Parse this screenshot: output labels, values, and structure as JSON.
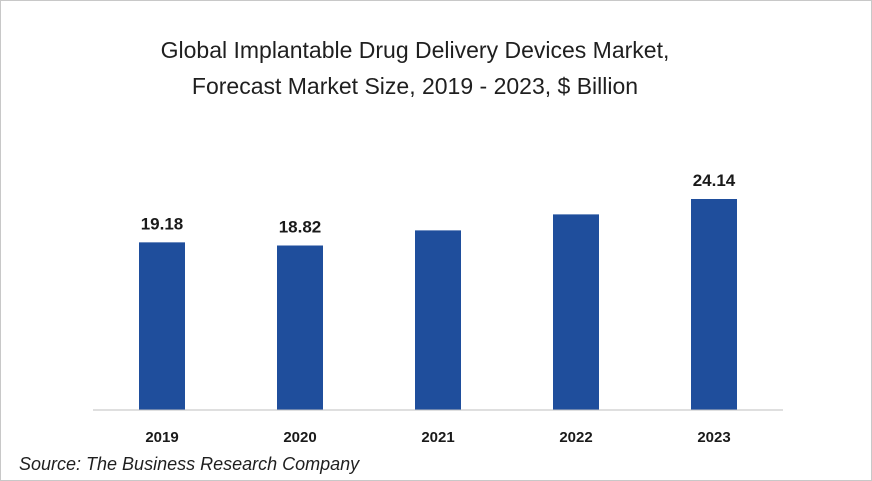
{
  "chart_data": {
    "type": "bar",
    "title_lines": [
      "Global Implantable Drug Delivery Devices Market,",
      "Forecast Market Size, 2019 - 2023, $ Billion"
    ],
    "categories": [
      "2019",
      "2020",
      "2021",
      "2022",
      "2023"
    ],
    "values": [
      19.18,
      18.82,
      20.55,
      22.38,
      24.14
    ],
    "data_labels": [
      "19.18",
      "18.82",
      "",
      "",
      "24.14"
    ],
    "ylim": [
      0,
      24.14
    ],
    "grid": false,
    "legend": "none",
    "bar_color": "#1f4e9c",
    "axis_color": "#bfbfbf"
  },
  "source": "Source: The Business Research Company"
}
